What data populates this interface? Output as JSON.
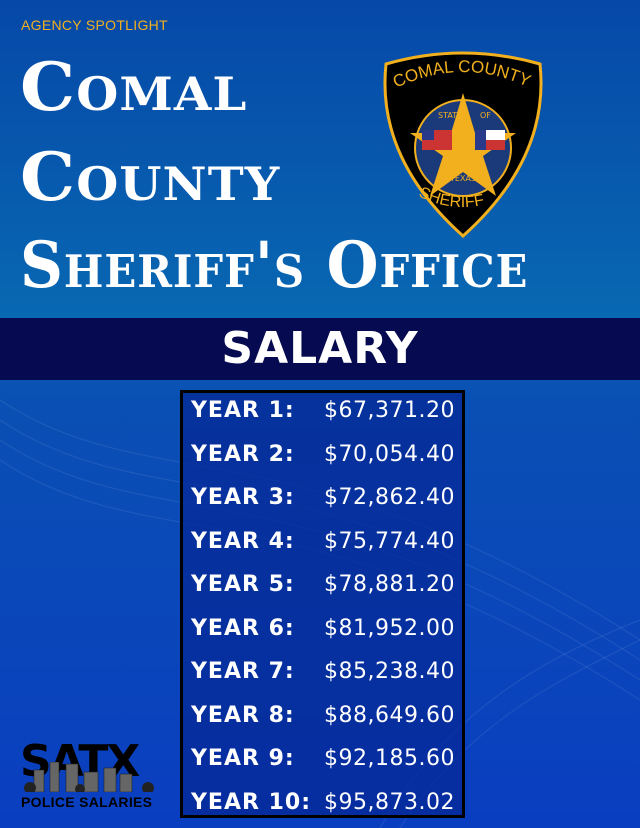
{
  "header": {
    "kicker": "AGENCY SPOTLIGHT",
    "title_lines": [
      "Comal",
      "County",
      "Sheriff's Office"
    ]
  },
  "badge": {
    "top_text": "COMAL COUNTY",
    "state_text": "STATE",
    "of_text": "OF",
    "texas_text": "TEXAS",
    "bottom_text": "SHERIFF"
  },
  "band": {
    "label": "SALARY"
  },
  "salary": [
    {
      "year": "YEAR 1:",
      "amount": "$67,371.20"
    },
    {
      "year": "YEAR 2:",
      "amount": "$70,054.40"
    },
    {
      "year": "YEAR 3:",
      "amount": "$72,862.40"
    },
    {
      "year": "YEAR 4:",
      "amount": "$75,774.40"
    },
    {
      "year": "YEAR 5:",
      "amount": "$78,881.20"
    },
    {
      "year": "YEAR 6:",
      "amount": "$81,952.00"
    },
    {
      "year": "YEAR 7:",
      "amount": "$85,238.40"
    },
    {
      "year": "YEAR 8:",
      "amount": "$88,649.60"
    },
    {
      "year": "YEAR 9:",
      "amount": "$92,185.60"
    },
    {
      "year": "YEAR 10:",
      "amount": "$95,873.02"
    }
  ],
  "logo": {
    "word": "SATX",
    "sub": "POLICE SALARIES"
  },
  "colors": {
    "gold": "#f2b01e",
    "band": "#060a50",
    "blue": "#0a4fb4"
  }
}
